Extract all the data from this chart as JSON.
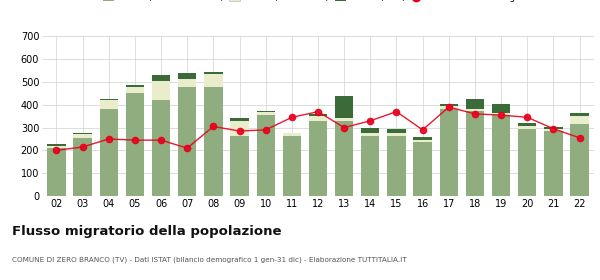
{
  "years": [
    "02",
    "03",
    "04",
    "05",
    "06",
    "07",
    "08",
    "09",
    "10",
    "11",
    "12",
    "13",
    "14",
    "15",
    "16",
    "17",
    "18",
    "19",
    "20",
    "21",
    "22"
  ],
  "iscritti_comuni": [
    210,
    255,
    380,
    450,
    420,
    480,
    480,
    265,
    355,
    265,
    330,
    330,
    265,
    265,
    235,
    380,
    375,
    355,
    295,
    285,
    315
  ],
  "iscritti_estero": [
    10,
    15,
    40,
    30,
    85,
    35,
    55,
    65,
    15,
    10,
    20,
    10,
    10,
    10,
    10,
    15,
    5,
    10,
    10,
    10,
    35
  ],
  "iscritti_altri": [
    8,
    5,
    5,
    8,
    25,
    25,
    8,
    10,
    5,
    0,
    8,
    100,
    22,
    18,
    15,
    10,
    45,
    40,
    15,
    8,
    12
  ],
  "cancellati": [
    200,
    215,
    250,
    245,
    245,
    210,
    305,
    285,
    290,
    345,
    370,
    300,
    330,
    370,
    290,
    390,
    360,
    355,
    345,
    295,
    255
  ],
  "color_comuni": "#8fad7e",
  "color_estero": "#eaedcc",
  "color_altri": "#3b6b38",
  "color_cancellati": "#e8001c",
  "background_color": "#ffffff",
  "grid_color": "#d0d0d0",
  "ylim": [
    0,
    700
  ],
  "yticks": [
    0,
    100,
    200,
    300,
    400,
    500,
    600,
    700
  ],
  "title": "Flusso migratorio della popolazione",
  "subtitle": "COMUNE DI ZERO BRANCO (TV) - Dati ISTAT (bilancio demografico 1 gen-31 dic) - Elaborazione TUTTITALIA.IT"
}
